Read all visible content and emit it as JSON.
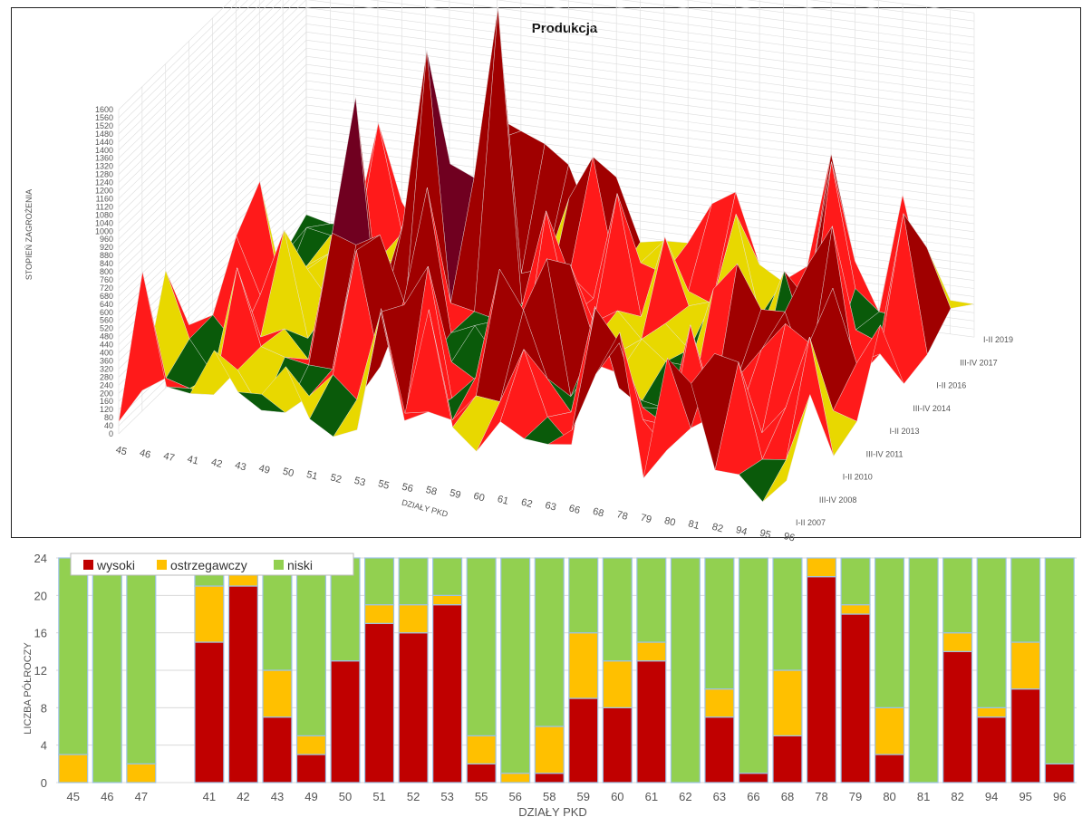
{
  "chart_data": [
    {
      "type": "surface",
      "title": "Produkcja",
      "zlabel": "STOPIEŃ ZAGROŻENIA",
      "xlabel": "DZIAŁY PKD",
      "zlim": [
        0,
        1600
      ],
      "z_ticks": [
        "0",
        "40",
        "80",
        "120",
        "160",
        "200",
        "240",
        "280",
        "320",
        "360",
        "400",
        "440",
        "480",
        "520",
        "560",
        "600",
        "640",
        "680",
        "720",
        "760",
        "800",
        "840",
        "880",
        "920",
        "960",
        "1000",
        "1040",
        "1080",
        "1120",
        "1160",
        "1200",
        "1240",
        "1280",
        "1320",
        "1360",
        "1400",
        "1440",
        "1480",
        "1520",
        "1560",
        "1600"
      ],
      "x_categories": [
        "45",
        "46",
        "47",
        "41",
        "42",
        "43",
        "49",
        "50",
        "51",
        "52",
        "53",
        "55",
        "56",
        "58",
        "59",
        "60",
        "61",
        "62",
        "63",
        "66",
        "68",
        "78",
        "79",
        "80",
        "81",
        "82",
        "94",
        "95",
        "96"
      ],
      "y_categories": [
        "I-II 2007",
        "III-IV 2008",
        "I-II 2010",
        "III-IV 2011",
        "I-II 2013",
        "III-IV 2014",
        "I-II 2016",
        "III-IV 2017",
        "I-II 2019"
      ],
      "band_colors": [
        "#1e8c1e",
        "#0a5a0a",
        "#e8d800",
        "#ff1a1a",
        "#a00000",
        "#700020"
      ]
    },
    {
      "type": "bar",
      "stacked": true,
      "categories": [
        "45",
        "46",
        "47",
        "",
        "41",
        "42",
        "43",
        "49",
        "50",
        "51",
        "52",
        "53",
        "55",
        "56",
        "58",
        "59",
        "60",
        "61",
        "62",
        "63",
        "66",
        "68",
        "78",
        "79",
        "80",
        "81",
        "82",
        "94",
        "95",
        "96"
      ],
      "series": [
        {
          "name": "wysoki",
          "color": "#c00000",
          "values": [
            0,
            0,
            0,
            null,
            15,
            21,
            7,
            3,
            13,
            17,
            16,
            19,
            2,
            0,
            1,
            9,
            8,
            13,
            0,
            7,
            1,
            5,
            22,
            18,
            3,
            0,
            14,
            7,
            10,
            2
          ]
        },
        {
          "name": "ostrzegawczy",
          "color": "#ffc000",
          "values": [
            3,
            0,
            2,
            null,
            6,
            3,
            5,
            2,
            0,
            2,
            3,
            1,
            3,
            1,
            5,
            7,
            5,
            2,
            0,
            3,
            0,
            7,
            2,
            1,
            5,
            0,
            2,
            1,
            5,
            0
          ]
        },
        {
          "name": "niski",
          "color": "#92d050",
          "values": [
            21,
            24,
            22,
            null,
            3,
            0,
            12,
            19,
            11,
            5,
            5,
            4,
            19,
            23,
            18,
            8,
            11,
            9,
            24,
            14,
            23,
            12,
            0,
            5,
            16,
            24,
            8,
            16,
            9,
            22
          ]
        }
      ],
      "xlabel": "DZIAŁY PKD",
      "ylabel": "LICZBA PÓŁROCZY",
      "ylim": [
        0,
        24
      ],
      "y_ticks": [
        "0",
        "4",
        "8",
        "12",
        "16",
        "20",
        "24"
      ],
      "legend_position": "top-left",
      "grid": true
    }
  ]
}
